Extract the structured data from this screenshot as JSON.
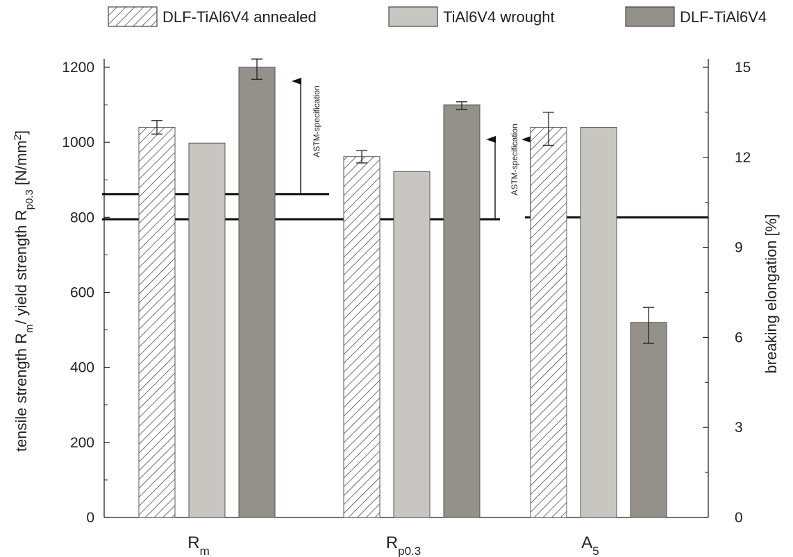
{
  "chart_data": {
    "type": "bar",
    "categories": [
      {
        "main": "R",
        "sub": "m"
      },
      {
        "main": "R",
        "sub": "p0.3"
      },
      {
        "main": "A",
        "sub": "5"
      }
    ],
    "series": [
      {
        "name": "DLF-TiAl6V4 annealed",
        "style": "hatched",
        "color": "#ffffff",
        "values": [
          1040,
          962,
          13.0
        ],
        "errors": [
          [
            1022,
            1058
          ],
          [
            945,
            978
          ],
          [
            12.4,
            13.5
          ]
        ]
      },
      {
        "name": "TiAl6V4 wrought",
        "style": "solid",
        "color": "#c8c6c0",
        "values": [
          998,
          922,
          13.0
        ],
        "errors": [
          null,
          null,
          null
        ]
      },
      {
        "name": "DLF-TiAl6V4",
        "style": "solid",
        "color": "#94908a",
        "values": [
          1200,
          1100,
          6.5
        ],
        "errors": [
          [
            1168,
            1222
          ],
          [
            1088,
            1108
          ],
          [
            5.8,
            7.0
          ]
        ]
      }
    ],
    "axis_of_category": [
      "left",
      "left",
      "right"
    ],
    "y_left": {
      "label_parts": [
        {
          "t": "tensile strength R"
        },
        {
          "t": "m",
          "s": "sub"
        },
        {
          "t": "/ yield strength R"
        },
        {
          "t": "p0.3",
          "s": "sub"
        },
        {
          "t": " [N/mm"
        },
        {
          "t": "2",
          "s": "sup"
        },
        {
          "t": "]"
        }
      ],
      "lim": [
        0,
        1200
      ],
      "ticks": [
        0,
        200,
        400,
        600,
        800,
        1000,
        1200
      ]
    },
    "y_right": {
      "label": "breaking elongation [%]",
      "lim": [
        0,
        15
      ],
      "ticks": [
        0,
        3,
        6,
        9,
        12,
        15
      ]
    },
    "reference_lines": [
      {
        "label": "ASTM-specification",
        "category": 0,
        "axis": "left",
        "value": 862
      },
      {
        "label": "ASTM-specification",
        "category": 1,
        "axis": "left",
        "value": 795
      },
      {
        "label": "ASTM-specification",
        "category": 2,
        "axis": "right",
        "value": 10
      }
    ],
    "legend_position": "top",
    "grid": false,
    "colors": {
      "axis": "#222222",
      "hatch": "#333333",
      "light_bar": "#c8c6c0",
      "dark_bar": "#94908a"
    }
  }
}
